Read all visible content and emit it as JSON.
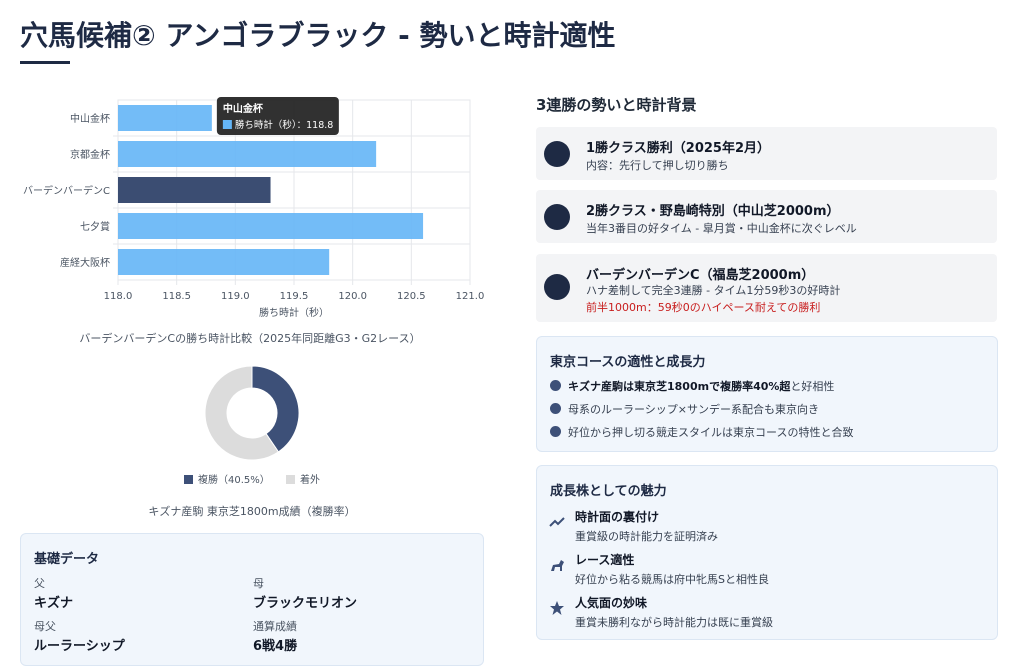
{
  "header": {
    "title": "穴馬候補② アンゴラブラック - 勢いと時計適性"
  },
  "chart_data": [
    {
      "type": "bar",
      "orientation": "horizontal",
      "categories": [
        "中山金杯",
        "京都金杯",
        "バーデンバーデンC",
        "七夕賞",
        "産経大阪杯"
      ],
      "series": [
        {
          "name": "勝ち時計（秒）",
          "values": [
            118.8,
            120.2,
            119.3,
            120.6,
            119.8
          ],
          "colors": [
            "#64b5f6",
            "#64b5f6",
            "#3b4d72",
            "#64b5f6",
            "#64b5f6"
          ]
        }
      ],
      "xlim": [
        118,
        121
      ],
      "xticks": [
        {
          "value": 118,
          "label": "118.0"
        },
        {
          "value": 118.5,
          "label": "118.5"
        },
        {
          "value": 119,
          "label": "119.0"
        },
        {
          "value": 119.5,
          "label": "119.5"
        },
        {
          "value": 120,
          "label": "120.0"
        },
        {
          "value": 120.5,
          "label": "120.5"
        },
        {
          "value": 121,
          "label": "121.0"
        }
      ],
      "xlabel": "勝ち時計（秒）",
      "title": "バーデンバーデンCの勝ち時計比較（2025年同距離G3・G2レース）",
      "grid": true
    },
    {
      "type": "doughnut",
      "categories": [
        "複勝（40.5%）",
        "着外"
      ],
      "values": [
        40.5,
        59.5
      ],
      "colors": [
        "#3d5078",
        "#dcdcdc"
      ],
      "legend": "bottom",
      "title": "キズナ産駒 東京芝1800m成績（複勝率）"
    }
  ],
  "momentum": {
    "title": "3連勝の勢いと時計背景",
    "items": [
      {
        "title": "1勝クラス勝利（2025年2月）",
        "text": "内容：先行して押し切り勝ち"
      },
      {
        "title": "2勝クラス・野島崎特別（中山芝2000m）",
        "text": "当年3番目の好タイム - 皐月賞・中山金杯に次ぐレベル"
      },
      {
        "title": "バーデンバーデンC（福島芝2000m）",
        "text": "ハナ差制して完全3連勝 - タイム1分59秒3の好時計",
        "note": "前半1000m：59秒0のハイペース耐えての勝利"
      }
    ]
  },
  "tokyo": {
    "title": "東京コースの適性と成長力",
    "items": [
      {
        "strong": "キズナ産駒は東京芝1800mで複勝率40%超",
        "text": "と好相性"
      },
      {
        "text": "母系のルーラーシップ×サンデー系配合も東京向き"
      },
      {
        "text": "好位から押し切る競走スタイルは東京コースの特性と合致"
      }
    ]
  },
  "growth": {
    "title": "成長株としての魅力",
    "items": [
      {
        "title": "時計面の裏付け",
        "text": "重賞級の時計能力を証明済み"
      },
      {
        "title": "レース適性",
        "text": "好位から粘る競馬は府中牝馬Sと相性良"
      },
      {
        "title": "人気面の妙味",
        "text": "重賞未勝利ながら時計能力は既に重賞級"
      }
    ]
  },
  "basic": {
    "title": "基礎データ",
    "fields": [
      {
        "label": "父",
        "value": "キズナ"
      },
      {
        "label": "母",
        "value": "ブラックモリオン"
      },
      {
        "label": "母父",
        "value": "ルーラーシップ"
      },
      {
        "label": "通算成績",
        "value": "6戦4勝"
      }
    ]
  }
}
